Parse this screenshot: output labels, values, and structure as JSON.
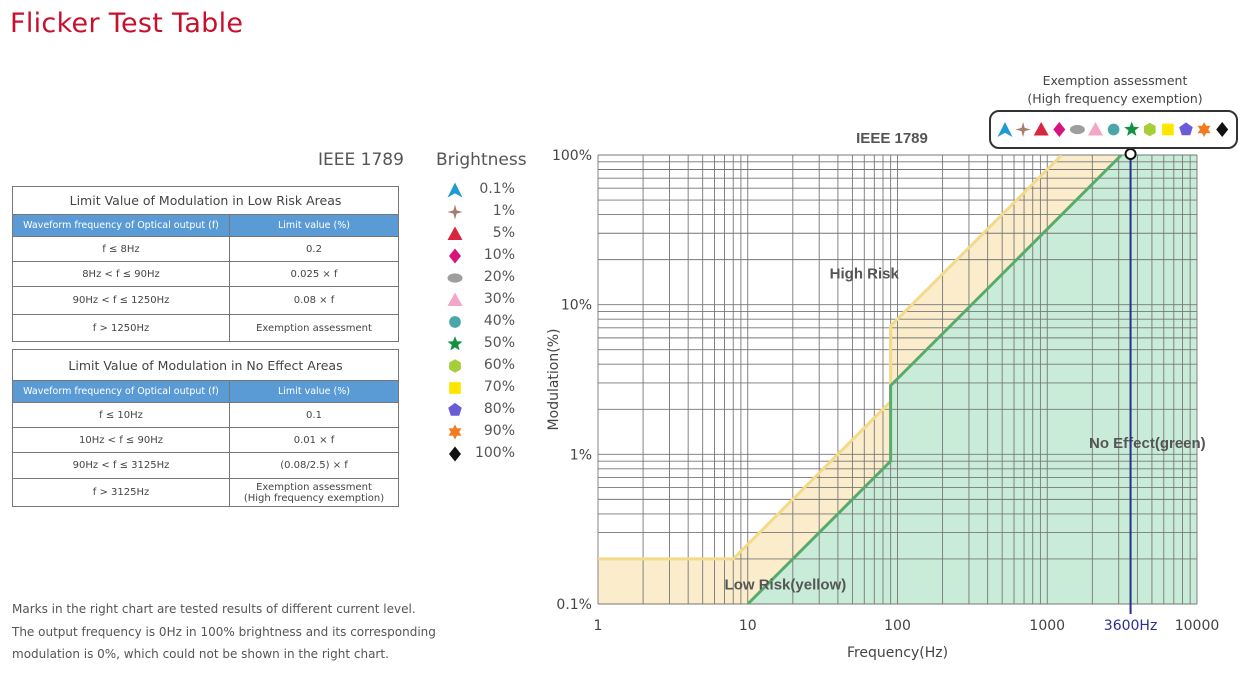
{
  "page": {
    "title": "Flicker Test Table",
    "standard": "IEEE 1789"
  },
  "low_risk_table": {
    "caption": "Limit Value of Modulation in Low Risk Areas",
    "headers": [
      "Waveform frequency of Optical output (f)",
      "Limit value (%)"
    ],
    "rows": [
      [
        "f ≤ 8Hz",
        "0.2"
      ],
      [
        "8Hz < f ≤ 90Hz",
        "0.025 × f"
      ],
      [
        "90Hz < f ≤ 1250Hz",
        "0.08 × f"
      ],
      [
        "f > 1250Hz",
        "Exemption assessment"
      ]
    ]
  },
  "no_effect_table": {
    "caption": "Limit Value of Modulation in No Effect Areas",
    "headers": [
      "Waveform frequency of Optical output (f)",
      "Limit value (%)"
    ],
    "rows": [
      [
        "f ≤ 10Hz",
        "0.1"
      ],
      [
        "10Hz < f ≤ 90Hz",
        "0.01 × f"
      ],
      [
        "90Hz < f ≤ 3125Hz",
        "(0.08/2.5) × f"
      ],
      [
        "f > 3125Hz",
        "Exemption assessment",
        "(High frequency exemption)"
      ]
    ]
  },
  "legend": {
    "title": "Brightness",
    "items": [
      {
        "label": "0.1%",
        "shape": "tri-arrow",
        "color": "#1e9ad6"
      },
      {
        "label": "1%",
        "shape": "star4",
        "color": "#a67c6e"
      },
      {
        "label": "5%",
        "shape": "triangle",
        "color": "#d7263d"
      },
      {
        "label": "10%",
        "shape": "diamond",
        "color": "#d6137f"
      },
      {
        "label": "20%",
        "shape": "ellipse",
        "color": "#9e9e9e"
      },
      {
        "label": "30%",
        "shape": "triangle",
        "color": "#f4a6c8"
      },
      {
        "label": "40%",
        "shape": "circle",
        "color": "#4aa6a8"
      },
      {
        "label": "50%",
        "shape": "star5",
        "color": "#139142"
      },
      {
        "label": "60%",
        "shape": "hexagon",
        "color": "#a6ce39"
      },
      {
        "label": "70%",
        "shape": "square",
        "color": "#ffe600"
      },
      {
        "label": "80%",
        "shape": "pentagon",
        "color": "#6a5bd9"
      },
      {
        "label": "90%",
        "shape": "star6",
        "color": "#f47a20"
      },
      {
        "label": "100%",
        "shape": "diamond",
        "color": "#111111"
      }
    ]
  },
  "notes": [
    "Marks in the right chart are tested results of different current level.",
    "The output frequency is 0Hz in 100% brightness and its corresponding",
    "modulation is 0%, which could not be shown in the right chart."
  ],
  "chart_data": {
    "type": "line",
    "title": "IEEE 1789",
    "xlabel": "Frequency(Hz)",
    "ylabel": "Modulation(%)",
    "x_scale": "log",
    "y_scale": "log",
    "xlim": [
      1,
      10000
    ],
    "ylim": [
      0.1,
      100
    ],
    "x_ticks": [
      {
        "value": 1,
        "label": "1"
      },
      {
        "value": 10,
        "label": "10"
      },
      {
        "value": 100,
        "label": "100"
      },
      {
        "value": 1000,
        "label": "1000"
      },
      {
        "value": 10000,
        "label": "10000"
      }
    ],
    "y_ticks": [
      {
        "value": 0.1,
        "label": "0.1%"
      },
      {
        "value": 1,
        "label": "1%"
      },
      {
        "value": 10,
        "label": "10%"
      },
      {
        "value": 100,
        "label": "100%"
      }
    ],
    "grid": true,
    "series": [
      {
        "name": "",
        "color": "#f5d98a",
        "points": [
          [
            1,
            0.2
          ],
          [
            8,
            0.2
          ],
          [
            90,
            2.25
          ],
          [
            90,
            7.2
          ],
          [
            1250,
            100
          ]
        ]
      },
      {
        "name": "",
        "color": "#5aaa6e",
        "points": [
          [
            10,
            0.1
          ],
          [
            90,
            0.9
          ],
          [
            90,
            2.88
          ],
          [
            3125,
            100
          ]
        ]
      }
    ],
    "regions": [
      {
        "label": "High Risk",
        "x": 60,
        "y": 15
      },
      {
        "label": "Low Risk(yellow)",
        "x": 7,
        "y": 0.125
      },
      {
        "label": "No Effect(green)",
        "x": 1900,
        "y": 1.1
      }
    ],
    "marker": {
      "x": 3600,
      "label": "3600Hz",
      "color": "#2a2f8f"
    },
    "exemption": {
      "title_lines": [
        "Exemption assessment",
        "(High frequency exemption)"
      ]
    },
    "colors": {
      "low_risk_fill": "#fbeccb",
      "no_effect_fill": "#c9ecd9",
      "grid": "#777777"
    }
  }
}
